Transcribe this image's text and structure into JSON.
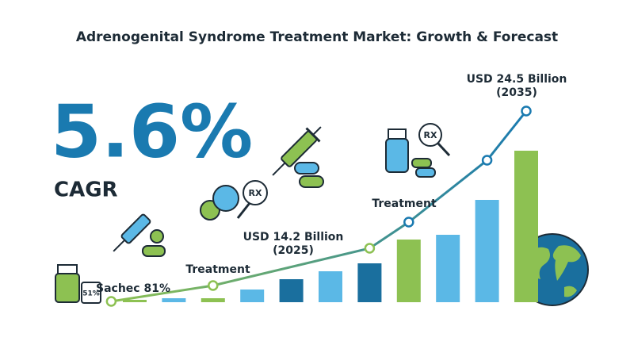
{
  "chart_data": {
    "type": "bar",
    "title": "Adrenogenital Syndrome Treatment Market: Growth & Forecast",
    "headline": "5.6%",
    "headline_label": "CAGR",
    "categories": [
      null,
      null,
      null,
      null,
      null,
      null,
      null,
      null,
      null,
      null,
      null
    ],
    "values": [
      3,
      5,
      5,
      16,
      29,
      39,
      49,
      79,
      85,
      129,
      191
    ],
    "colors": [
      "#8dc152",
      "#5bb8e6",
      "#8dc152",
      "#5bb8e6",
      "#1a6f9e",
      "#5bb8e6",
      "#1a6f9e",
      "#8dc152",
      "#5bb8e6",
      "#5bb8e6",
      "#8dc152"
    ],
    "ylim": [
      0,
      250
    ],
    "line": {
      "x": [
        -0.6,
        2,
        6,
        7,
        9,
        10
      ],
      "values": [
        1,
        21,
        68,
        101,
        179,
        241
      ],
      "colors": [
        "#8dc152",
        "#1a7ab0"
      ]
    },
    "annotations": [
      {
        "lines": [
          "USD 24.5 Billion",
          "(2035)"
        ]
      },
      {
        "lines": [
          "USD 14.2 Billion",
          "(2025)"
        ]
      },
      {
        "lines": [
          "Treatment"
        ]
      },
      {
        "lines": [
          "Treatment"
        ]
      },
      {
        "lines": [
          "Sachec 81%"
        ]
      }
    ],
    "icon_labels": [
      "RX",
      "RX",
      "51%"
    ]
  }
}
